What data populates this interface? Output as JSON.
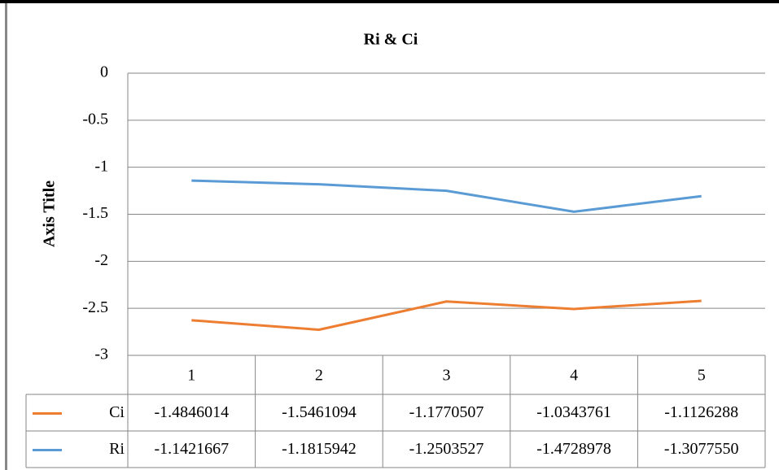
{
  "chart_data": {
    "type": "line",
    "stacked": true,
    "title": "Ri & Ci",
    "y_axis_label": "Axis Title",
    "categories": [
      "1",
      "2",
      "3",
      "4",
      "5"
    ],
    "series": [
      {
        "name": "Ci",
        "color": "#ed7d31",
        "values": [
          -1.4846014,
          -1.5461094,
          -1.1770507,
          -1.0343761,
          -1.1126288
        ],
        "value_labels": [
          "-1.4846014",
          "-1.5461094",
          "-1.1770507",
          "-1.0343761",
          "-1.1126288"
        ]
      },
      {
        "name": "Ri",
        "color": "#5b9bd5",
        "values": [
          -1.1421667,
          -1.1815942,
          -1.2503527,
          -1.4728978,
          -1.307755
        ],
        "value_labels": [
          "-1.1421667",
          "-1.1815942",
          "-1.2503527",
          "-1.4728978",
          "-1.3077550"
        ]
      }
    ],
    "ylim": [
      -3,
      0
    ],
    "yticks": [
      0,
      -0.5,
      -1,
      -1.5,
      -2,
      -2.5,
      -3
    ],
    "grid": true
  }
}
